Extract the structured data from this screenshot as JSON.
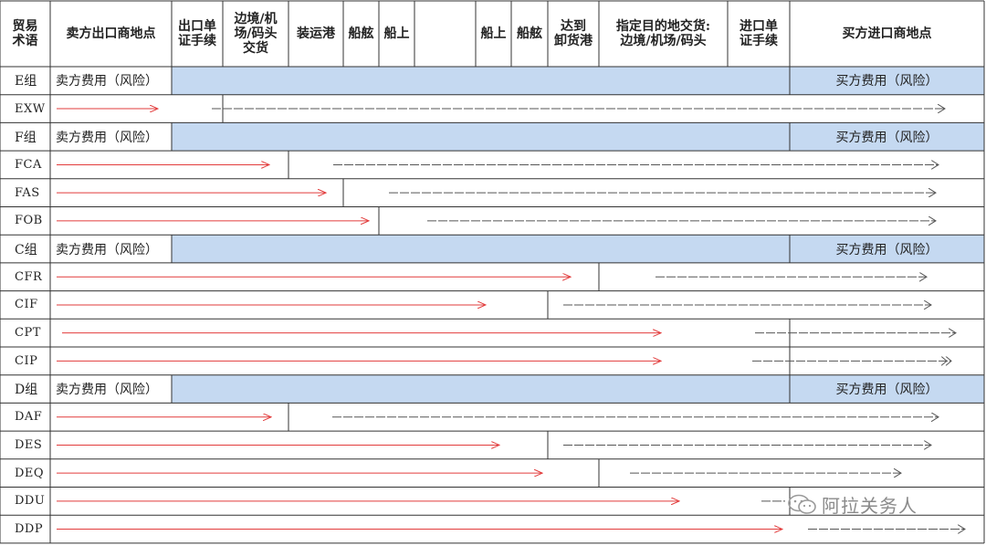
{
  "header": {
    "cols": [
      {
        "id": "term",
        "lines": [
          "贸易",
          "术语"
        ]
      },
      {
        "id": "seller",
        "lines": [
          "卖方出口商地点"
        ]
      },
      {
        "id": "export_docs",
        "lines": [
          "出口单",
          "证手续"
        ]
      },
      {
        "id": "border",
        "lines": [
          "边境/机",
          "场/码头",
          "交货"
        ]
      },
      {
        "id": "load_port",
        "lines": [
          "装运港"
        ]
      },
      {
        "id": "rail1",
        "lines": [
          "船舷"
        ]
      },
      {
        "id": "onboard1",
        "lines": [
          "船上"
        ]
      },
      {
        "id": "blank",
        "lines": [
          ""
        ]
      },
      {
        "id": "onboard2",
        "lines": [
          "船上"
        ]
      },
      {
        "id": "rail2",
        "lines": [
          "船舷"
        ]
      },
      {
        "id": "dest_port",
        "lines": [
          "达到",
          "卸货港"
        ]
      },
      {
        "id": "dest",
        "lines": [
          "指定目的地交货:",
          "边境/机场/码头"
        ]
      },
      {
        "id": "import_docs",
        "lines": [
          "进口单",
          "证手续"
        ]
      },
      {
        "id": "buyer",
        "lines": [
          "买方进口商地点"
        ]
      }
    ]
  },
  "groups": {
    "E": {
      "label": "E组",
      "seller": "卖方费用（风险）",
      "buyer": "买方费用（风险）"
    },
    "F": {
      "label": "F组",
      "seller": "卖方费用（风险）",
      "buyer": "买方费用（风险）"
    },
    "C": {
      "label": "C组",
      "seller": "卖方费用（风险）",
      "buyer": "买方费用（风险）"
    },
    "D": {
      "label": "D组",
      "seller": "卖方费用（风险）",
      "buyer": "买方费用（风险）"
    }
  },
  "rows": [
    {
      "type": "group",
      "key": "E"
    },
    {
      "type": "term",
      "term": "EXW",
      "split": 3,
      "red": [
        62,
        173
      ],
      "dash": [
        232,
        1035
      ],
      "arrow": ">"
    },
    {
      "type": "group",
      "key": "F"
    },
    {
      "type": "term",
      "term": "FCA",
      "split": 4,
      "red": [
        62,
        295
      ],
      "dash": [
        365,
        1028
      ],
      "arrow": ">"
    },
    {
      "type": "term",
      "term": "FAS",
      "split": 5,
      "red": [
        62,
        357
      ],
      "dash": [
        426,
        1025
      ],
      "arrow": ">"
    },
    {
      "type": "term",
      "term": "FOB",
      "split": 6,
      "red": [
        62,
        404
      ],
      "dash": [
        468,
        1025
      ],
      "arrow": ">"
    },
    {
      "type": "group",
      "key": "C"
    },
    {
      "type": "term",
      "term": "CFR",
      "split": 11,
      "red": [
        62,
        625
      ],
      "dash": [
        718,
        1015
      ],
      "arrow": ">"
    },
    {
      "type": "term",
      "term": "CIF",
      "split": 10,
      "red": [
        62,
        532
      ],
      "dash": [
        617,
        1020
      ],
      "arrow": ">"
    },
    {
      "type": "term",
      "term": "CPT",
      "split": 13,
      "red": [
        68,
        724
      ],
      "dash": [
        827,
        1047
      ],
      "arrow": ">"
    },
    {
      "type": "term",
      "term": "CIP",
      "split": 13,
      "red": [
        62,
        724
      ],
      "dash": [
        824,
        1042
      ],
      "arrow": "》"
    },
    {
      "type": "group",
      "key": "D"
    },
    {
      "type": "term",
      "term": "DAF",
      "split": 4,
      "red": [
        62,
        297
      ],
      "dash": [
        364,
        1028
      ],
      "arrow": ">"
    },
    {
      "type": "term",
      "term": "DES",
      "split": 10,
      "red": [
        62,
        547
      ],
      "dash": [
        617,
        1020
      ],
      "arrow": ">"
    },
    {
      "type": "term",
      "term": "DEQ",
      "split": 11,
      "red": [
        62,
        594
      ],
      "dash": [
        690,
        987
      ],
      "arrow": ">"
    },
    {
      "type": "term",
      "term": "DDU",
      "split": 13,
      "red": [
        62,
        744
      ],
      "dash": [
        834,
        860
      ],
      "arrow": ""
    },
    {
      "type": "term",
      "term": "DDP",
      "split": 14,
      "red": [
        62,
        857
      ],
      "dash": [
        885,
        1057
      ],
      "arrow": ">"
    }
  ],
  "colors": {
    "grid": "#333333",
    "group_fill": "#c5d9f1",
    "red_arrow": "#e23b3b",
    "dash_arrow": "#555555"
  },
  "watermark": {
    "text": "阿拉关务人",
    "icon": "wechat-icon"
  }
}
